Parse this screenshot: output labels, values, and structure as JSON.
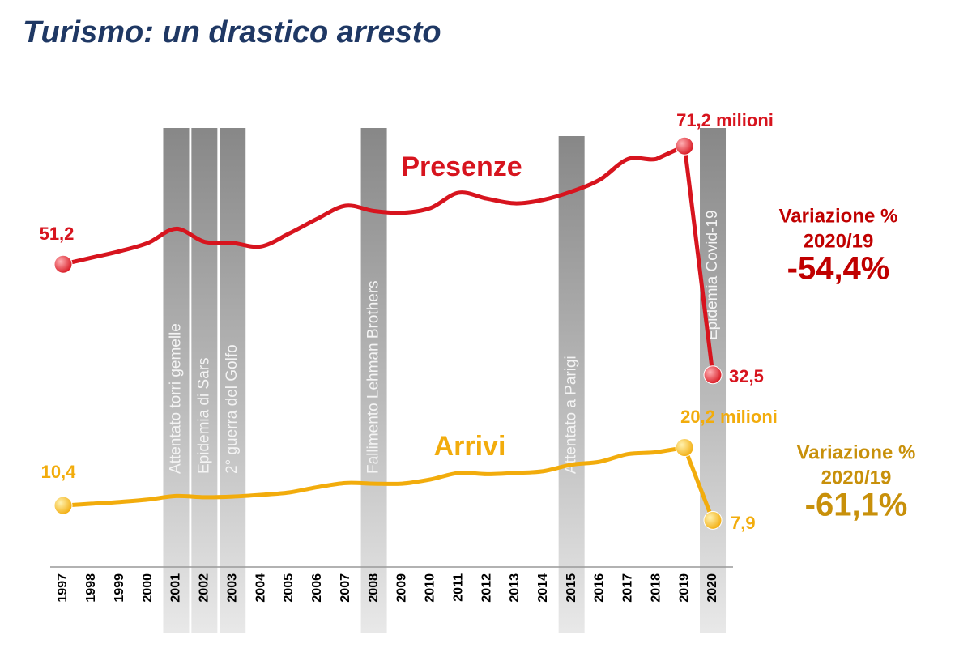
{
  "chart_data": {
    "type": "line",
    "title": "Turismo: un drastico arresto",
    "categories": [
      "1997",
      "1998",
      "1999",
      "2000",
      "2001",
      "2002",
      "2003",
      "2004",
      "2005",
      "2006",
      "2007",
      "2008",
      "2009",
      "2010",
      "2011",
      "2012",
      "2013",
      "2014",
      "2015",
      "2016",
      "2017",
      "2018",
      "2019",
      "2020"
    ],
    "ylim": [
      0,
      80
    ],
    "series": [
      {
        "name": "Presenze",
        "color": "#d7141e",
        "values": [
          51.2,
          52.3,
          53.4,
          54.8,
          57.2,
          55.0,
          54.8,
          54.2,
          56.4,
          58.9,
          61.1,
          60.2,
          59.9,
          60.7,
          63.3,
          62.3,
          61.5,
          62.1,
          63.5,
          65.5,
          69.0,
          69.0,
          71.2,
          32.5
        ],
        "value_labels": [
          "51,2",
          null,
          null,
          null,
          null,
          null,
          null,
          null,
          null,
          null,
          null,
          null,
          null,
          null,
          null,
          null,
          null,
          null,
          null,
          null,
          null,
          null,
          "71,2 milioni",
          "32,5"
        ],
        "change": [
          "Variazione %",
          "2020/19",
          "-54,4%"
        ],
        "change_color": "#c00000"
      },
      {
        "name": "Arrivi",
        "color": "#f2ac0c",
        "values": [
          10.4,
          10.7,
          11.0,
          11.4,
          12.0,
          11.8,
          11.9,
          12.2,
          12.6,
          13.5,
          14.2,
          14.1,
          14.1,
          14.8,
          15.9,
          15.7,
          15.9,
          16.2,
          17.3,
          17.8,
          19.1,
          19.4,
          20.2,
          7.9
        ],
        "value_labels": [
          "10,4",
          null,
          null,
          null,
          null,
          null,
          null,
          null,
          null,
          null,
          null,
          null,
          null,
          null,
          null,
          null,
          null,
          null,
          null,
          null,
          null,
          null,
          "20,2 milioni",
          "7,9"
        ],
        "change": [
          "Variazione %",
          "2020/19",
          "-61,1%"
        ],
        "change_color": "#c8900a"
      }
    ],
    "events": [
      {
        "at": "2001",
        "label": "Attentato torri gemelle"
      },
      {
        "at": "2002",
        "label": "Epidemia di Sars"
      },
      {
        "at": "2003",
        "label": "2° guerra del Golfo"
      },
      {
        "at": "2008",
        "label": "Fallimento Lehman Brothers"
      },
      {
        "at": "2015",
        "label": "Attentato a Parigi"
      },
      {
        "at": "2020",
        "label": "Epidemia Covid-19"
      }
    ]
  }
}
